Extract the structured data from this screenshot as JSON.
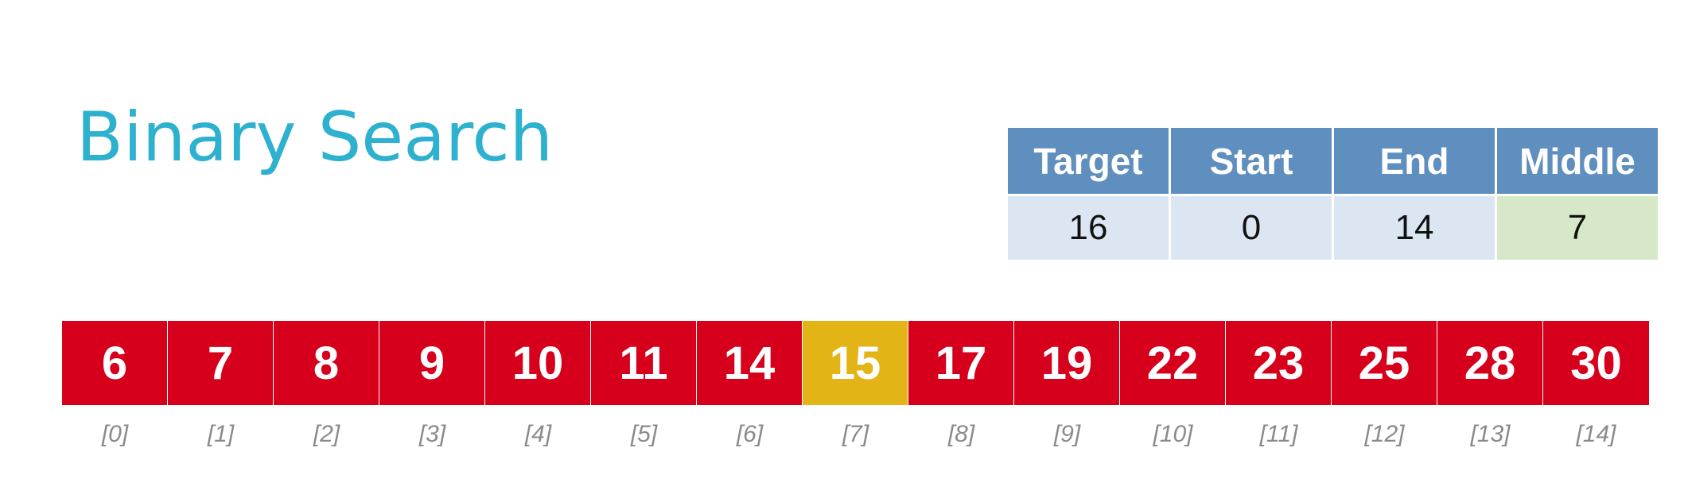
{
  "title": "Binary Search",
  "variables": {
    "headers": [
      "Target",
      "Start",
      "End",
      "Middle"
    ],
    "values": [
      "16",
      "0",
      "14",
      "7"
    ]
  },
  "array": {
    "values": [
      "6",
      "7",
      "8",
      "9",
      "10",
      "11",
      "14",
      "15",
      "17",
      "19",
      "22",
      "23",
      "25",
      "28",
      "30"
    ],
    "indices": [
      "[0]",
      "[1]",
      "[2]",
      "[3]",
      "[4]",
      "[5]",
      "[6]",
      "[7]",
      "[8]",
      "[9]",
      "[10]",
      "[11]",
      "[12]",
      "[13]",
      "[14]"
    ],
    "highlight_index": 7
  },
  "colors": {
    "title": "#2db1cf",
    "cell": "#d6001c",
    "middle_cell": "#e3b416",
    "header": "#5f8fbf",
    "value_bg": "#dce6f2",
    "middle_value_bg": "#d6e8c8"
  }
}
